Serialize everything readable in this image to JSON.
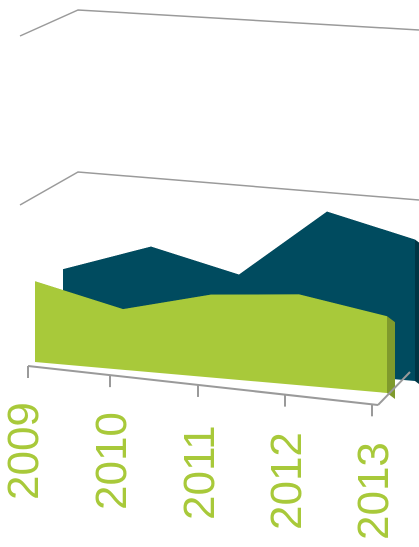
{
  "chart_data": {
    "type": "area",
    "style": "3d",
    "categories": [
      "2009",
      "2010",
      "2011",
      "2012",
      "2013"
    ],
    "series": [
      {
        "values": [
          40,
          55,
          45,
          80,
          70
        ],
        "color": "#004b5f",
        "side_color": "#003544"
      },
      {
        "values": [
          40,
          30,
          41,
          45,
          38
        ],
        "color": "#a8c93a",
        "side_color": "#7f9a2c"
      }
    ],
    "ylim": [
      0,
      100
    ],
    "grid": true,
    "legend": "none",
    "tick_label_color": "#a8c93a",
    "gridline_color": "#9a9a9a"
  }
}
